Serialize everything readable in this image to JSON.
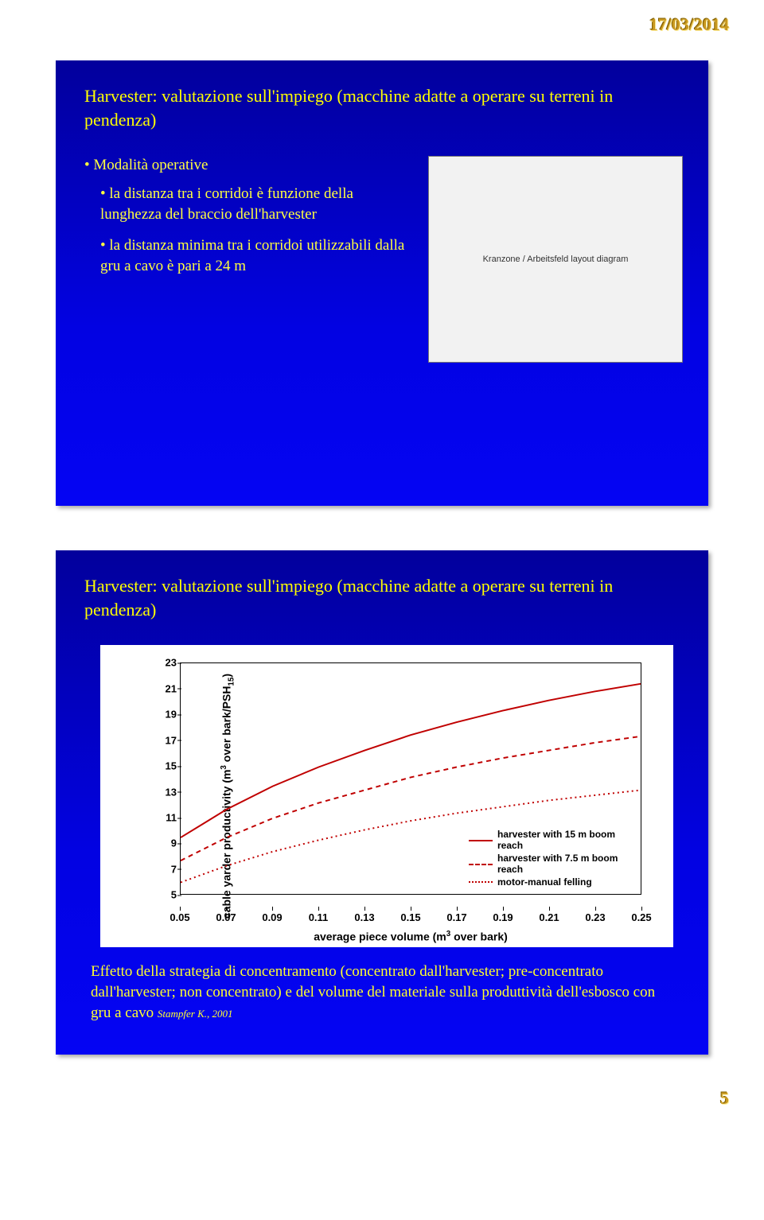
{
  "header": {
    "date": "17/03/2014",
    "page_number": "5"
  },
  "slide1": {
    "title": "Harvester: valutazione sull'impiego (macchine adatte a operare su terreni in pendenza)",
    "section_label": "Modalità operative",
    "bullet1": "la distanza tra i corridoi è funzione della lunghezza del braccio dell'harvester",
    "bullet2": "la distanza minima tra i corridoi utilizzabili dalla gru a cavo è pari a 24 m",
    "diagram_caption": "Kranzone / Arbeitsfeld layout diagram"
  },
  "slide2": {
    "title": "Harvester: valutazione sull'impiego (macchine adatte a operare su terreni in pendenza)",
    "chart": {
      "type": "line",
      "ylabel_html": "cable yarder productivity (m<span class='sup'>3</span> over bark/PSH<span class='sub-txt'>15</span>)",
      "xlabel_html": "average piece volume (m<span class='sup'>3</span> over bark)",
      "ylim": [
        5,
        23
      ],
      "ytick_step": 2,
      "yticks": [
        5,
        7,
        9,
        11,
        13,
        15,
        17,
        19,
        21,
        23
      ],
      "xlim": [
        0.05,
        0.25
      ],
      "xtick_step": 0.02,
      "xticks": [
        "0.05",
        "0.07",
        "0.09",
        "0.11",
        "0.13",
        "0.15",
        "0.17",
        "0.19",
        "0.21",
        "0.23",
        "0.25"
      ],
      "background_color": "#ffffff",
      "series": [
        {
          "name": "harvester with 15 m boom reach",
          "color": "#c00000",
          "width": 2,
          "dash": "none",
          "x": [
            0.05,
            0.07,
            0.09,
            0.11,
            0.13,
            0.15,
            0.17,
            0.19,
            0.21,
            0.23,
            0.25
          ],
          "y": [
            9.4,
            11.6,
            13.4,
            14.9,
            16.2,
            17.4,
            18.4,
            19.3,
            20.1,
            20.8,
            21.4
          ]
        },
        {
          "name": "harvester with 7.5 m boom reach",
          "color": "#c00000",
          "width": 2,
          "dash": "6,5",
          "x": [
            0.05,
            0.07,
            0.09,
            0.11,
            0.13,
            0.15,
            0.17,
            0.19,
            0.21,
            0.23,
            0.25
          ],
          "y": [
            7.6,
            9.4,
            10.9,
            12.1,
            13.1,
            14.1,
            14.9,
            15.6,
            16.2,
            16.8,
            17.3
          ]
        },
        {
          "name": "motor-manual felling",
          "color": "#c00000",
          "width": 2,
          "dash": "2,4",
          "x": [
            0.05,
            0.07,
            0.09,
            0.11,
            0.13,
            0.15,
            0.17,
            0.19,
            0.21,
            0.23,
            0.25
          ],
          "y": [
            5.9,
            7.2,
            8.3,
            9.2,
            10.0,
            10.7,
            11.3,
            11.8,
            12.3,
            12.7,
            13.1
          ]
        }
      ],
      "legend_labels": {
        "s0": "harvester with 15 m boom reach",
        "s1": "harvester with 7.5 m boom reach",
        "s2": "motor-manual felling"
      }
    },
    "citation_text": "Effetto della strategia di concentramento (concentrato dall'harvester; pre-concentrato dall'harvester; non concentrato) e del volume del materiale sulla produttività dell'esbosco con gru a cavo",
    "citation_ref": "Stampfer K., 2001"
  }
}
